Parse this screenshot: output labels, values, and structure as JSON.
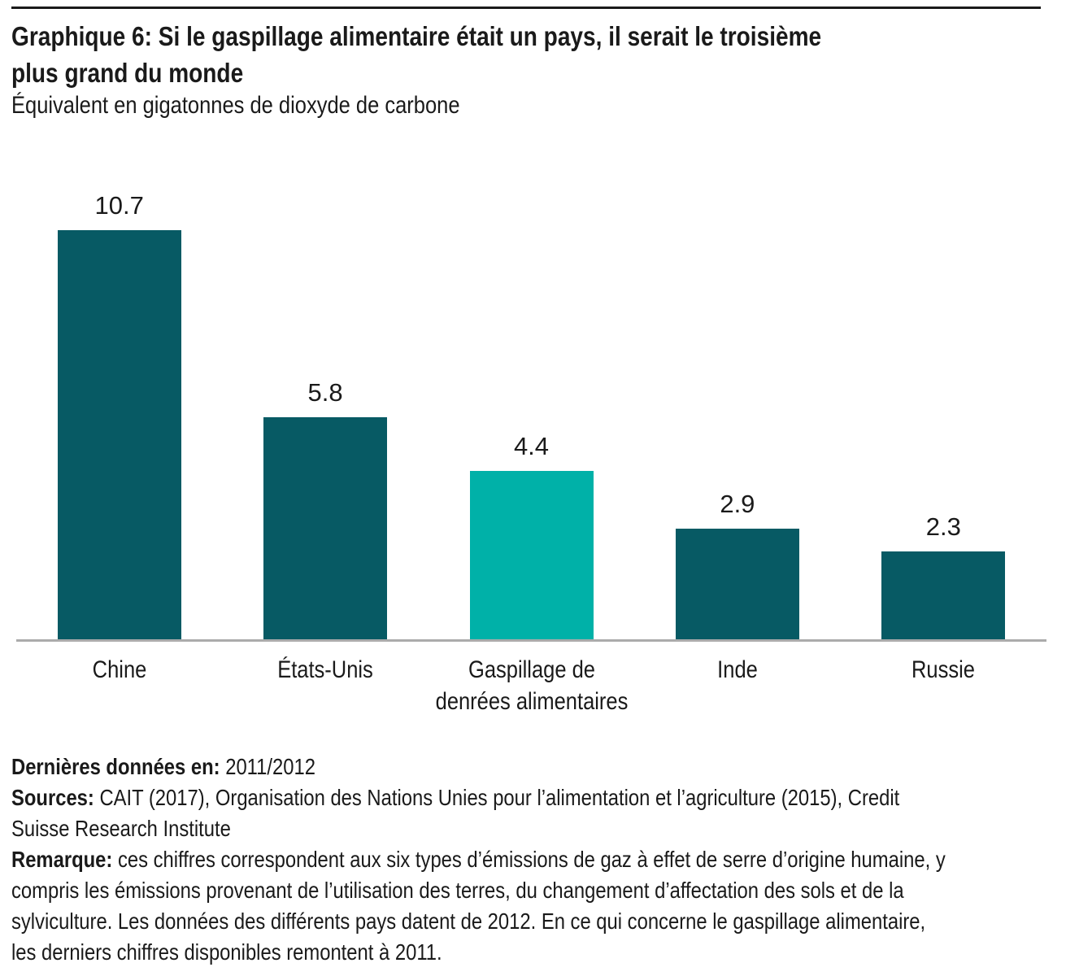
{
  "chart_data": {
    "type": "bar",
    "title": "Graphique 6: Si le gaspillage alimentaire était un pays, il serait le troisième\nplus grand du monde",
    "subtitle": "Équivalent en gigatonnes de dioxyde de carbone",
    "categories": [
      "Chine",
      "États-Unis",
      "Gaspillage de denrées alimentaires",
      "Inde",
      "Russie"
    ],
    "tick_labels": [
      "Chine",
      "États-Unis",
      "Gaspillage de\ndenrées alimentaires",
      "Inde",
      "Russie"
    ],
    "values": [
      10.7,
      5.8,
      4.4,
      2.9,
      2.3
    ],
    "value_labels": [
      "10.7",
      "5.8",
      "4.4",
      "2.9",
      "2.3"
    ],
    "ylim": [
      0,
      11.8
    ],
    "grid": false,
    "legend": false,
    "highlight_index": 2,
    "bar_color_default": "#075a64",
    "bar_color_highlight": "#00b1a8"
  },
  "colors": {
    "text": "#1a1a1a",
    "top_rule": "#1a1a1a",
    "axis_line": "#ababab",
    "bar_default": "#075a64",
    "bar_highlight": "#00b1a8"
  },
  "footnotes": [
    {
      "label": "Dernières données en:",
      "text": " 2011/2012"
    },
    {
      "label": "Sources:",
      "text": " CAIT (2017), Organisation des Nations Unies pour l’alimentation et l’agriculture (2015), Credit\nSuisse Research Institute"
    },
    {
      "label": "Remarque:",
      "text": " ces chiffres correspondent aux six types d’émissions de gaz à effet de serre d’origine humaine, y\ncompris les émissions provenant de l’utilisation des terres, du changement d’affectation des sols et de la\nsylviculture. Les données des différents pays datent de 2012. En ce qui concerne le gaspillage alimentaire,\nles derniers chiffres disponibles remontent à 2011."
    }
  ]
}
